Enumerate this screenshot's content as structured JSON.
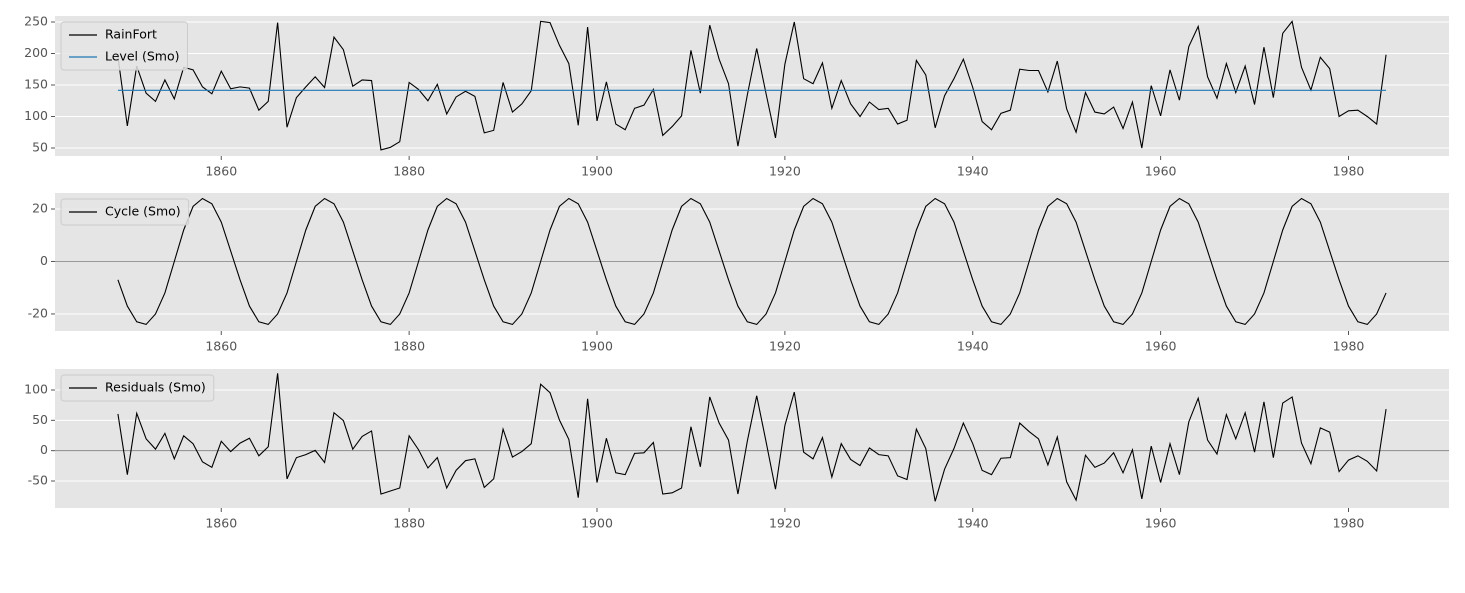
{
  "chart_data": [
    {
      "type": "line",
      "x": [
        1849,
        1850,
        1851,
        1852,
        1853,
        1854,
        1855,
        1856,
        1857,
        1858,
        1859,
        1860,
        1861,
        1862,
        1863,
        1864,
        1865,
        1866,
        1867,
        1868,
        1869,
        1870,
        1871,
        1872,
        1873,
        1874,
        1875,
        1876,
        1877,
        1878,
        1879,
        1880,
        1881,
        1882,
        1883,
        1884,
        1885,
        1886,
        1887,
        1888,
        1889,
        1890,
        1891,
        1892,
        1893,
        1894,
        1895,
        1896,
        1897,
        1898,
        1899,
        1900,
        1901,
        1902,
        1903,
        1904,
        1905,
        1906,
        1907,
        1908,
        1909,
        1910,
        1911,
        1912,
        1913,
        1914,
        1915,
        1916,
        1917,
        1918,
        1919,
        1920,
        1921,
        1922,
        1923,
        1924,
        1925,
        1926,
        1927,
        1928,
        1929,
        1930,
        1931,
        1932,
        1933,
        1934,
        1935,
        1936,
        1937,
        1938,
        1939,
        1940,
        1941,
        1942,
        1943,
        1944,
        1945,
        1946,
        1947,
        1948,
        1949,
        1950,
        1951,
        1952,
        1953,
        1954,
        1955,
        1956,
        1957,
        1958,
        1959,
        1960,
        1961,
        1962,
        1963,
        1964,
        1965,
        1966,
        1967,
        1968,
        1969,
        1970,
        1971,
        1972,
        1973,
        1974,
        1975,
        1976,
        1977,
        1978,
        1979,
        1980,
        1981,
        1982,
        1983,
        1984
      ],
      "series": [
        {
          "name": "RainFort",
          "color": "#000000",
          "values": [
            195,
            85,
            180,
            137,
            124,
            158,
            128,
            178,
            174,
            147,
            136,
            172,
            144,
            147,
            145,
            110,
            124,
            249,
            83,
            130,
            147,
            163,
            146,
            226,
            206,
            148,
            158,
            157,
            47,
            51,
            60,
            154,
            143,
            125,
            151,
            104,
            131,
            140,
            132,
            74,
            78,
            154,
            107,
            120,
            141,
            251,
            249,
            213,
            184,
            86,
            242,
            93,
            155,
            88,
            79,
            113,
            118,
            143,
            70,
            84,
            101,
            205,
            137,
            245,
            191,
            152,
            53,
            134,
            208,
            136,
            66,
            183,
            250,
            160,
            152,
            185,
            113,
            157,
            120,
            100,
            123,
            111,
            113,
            88,
            94,
            189,
            166,
            82,
            133,
            160,
            191,
            146,
            92,
            79,
            105,
            110,
            175,
            173,
            173,
            139,
            188,
            112,
            75,
            138,
            107,
            104,
            115,
            81,
            123,
            50,
            149,
            101,
            174,
            126,
            211,
            243,
            163,
            129,
            184,
            138,
            180,
            119,
            210,
            130,
            232,
            251,
            178,
            142,
            194,
            176,
            100,
            109,
            110,
            100,
            88,
            198
          ]
        },
        {
          "name": "Level (Smo)",
          "color": "#1f77b4",
          "values": [
            141.5,
            141.5,
            141.5,
            141.5,
            141.5,
            141.5,
            141.5,
            141.5,
            141.5,
            141.5,
            141.5,
            141.5,
            141.5,
            141.5,
            141.5,
            141.5,
            141.5,
            141.5,
            141.5,
            141.5,
            141.5,
            141.5,
            141.5,
            141.5,
            141.5,
            141.5,
            141.5,
            141.5,
            141.5,
            141.5,
            141.5,
            141.5,
            141.5,
            141.5,
            141.5,
            141.5,
            141.5,
            141.5,
            141.5,
            141.5,
            141.5,
            141.5,
            141.5,
            141.5,
            141.5,
            141.5,
            141.5,
            141.5,
            141.5,
            141.5,
            141.5,
            141.5,
            141.5,
            141.5,
            141.5,
            141.5,
            141.5,
            141.5,
            141.5,
            141.5,
            141.5,
            141.5,
            141.5,
            141.5,
            141.5,
            141.5,
            141.5,
            141.5,
            141.5,
            141.5,
            141.5,
            141.5,
            141.5,
            141.5,
            141.5,
            141.5,
            141.5,
            141.5,
            141.5,
            141.5,
            141.5,
            141.5,
            141.5,
            141.5,
            141.5,
            141.5,
            141.5,
            141.5,
            141.5,
            141.5,
            141.5,
            141.5,
            141.5,
            141.5,
            141.5,
            141.5,
            141.5,
            141.5,
            141.5,
            141.5,
            141.5,
            141.5,
            141.5,
            141.5,
            141.5,
            141.5,
            141.5,
            141.5,
            141.5,
            141.5,
            141.5,
            141.5,
            141.5,
            141.5,
            141.5,
            141.5,
            141.5,
            141.5,
            141.5,
            141.5,
            141.5,
            141.5,
            141.5,
            141.5,
            141.5,
            141.5,
            141.5,
            141.5,
            141.5,
            141.5,
            141.5,
            141.5,
            141.5,
            141.5,
            141.5,
            141.5
          ]
        }
      ],
      "xlim": [
        1842.3,
        1990.7
      ],
      "xticks": [
        1860,
        1880,
        1900,
        1920,
        1940,
        1960,
        1980
      ],
      "ylim": [
        37.3,
        259.5
      ],
      "yticks": [
        50,
        100,
        150,
        200,
        250
      ],
      "grid": true,
      "legend": "upper left"
    },
    {
      "type": "line",
      "x": [
        1849,
        1850,
        1851,
        1852,
        1853,
        1854,
        1855,
        1856,
        1857,
        1858,
        1859,
        1860,
        1861,
        1862,
        1863,
        1864,
        1865,
        1866,
        1867,
        1868,
        1869,
        1870,
        1871,
        1872,
        1873,
        1874,
        1875,
        1876,
        1877,
        1878,
        1879,
        1880,
        1881,
        1882,
        1883,
        1884,
        1885,
        1886,
        1887,
        1888,
        1889,
        1890,
        1891,
        1892,
        1893,
        1894,
        1895,
        1896,
        1897,
        1898,
        1899,
        1900,
        1901,
        1902,
        1903,
        1904,
        1905,
        1906,
        1907,
        1908,
        1909,
        1910,
        1911,
        1912,
        1913,
        1914,
        1915,
        1916,
        1917,
        1918,
        1919,
        1920,
        1921,
        1922,
        1923,
        1924,
        1925,
        1926,
        1927,
        1928,
        1929,
        1930,
        1931,
        1932,
        1933,
        1934,
        1935,
        1936,
        1937,
        1938,
        1939,
        1940,
        1941,
        1942,
        1943,
        1944,
        1945,
        1946,
        1947,
        1948,
        1949,
        1950,
        1951,
        1952,
        1953,
        1954,
        1955,
        1956,
        1957,
        1958,
        1959,
        1960,
        1961,
        1962,
        1963,
        1964,
        1965,
        1966,
        1967,
        1968,
        1969,
        1970,
        1971,
        1972,
        1973,
        1974,
        1975,
        1976,
        1977,
        1978,
        1979,
        1980,
        1981,
        1982,
        1983,
        1984
      ],
      "series": [
        {
          "name": "Cycle (Smo)",
          "color": "#000000",
          "values": [
            -7,
            -17,
            -23,
            -24,
            -20,
            -12,
            0,
            12,
            21,
            24,
            22,
            15,
            4,
            -7,
            -17,
            -23,
            -24,
            -20,
            -12,
            0,
            12,
            21,
            24,
            22,
            15,
            4,
            -7,
            -17,
            -23,
            -24,
            -20,
            -12,
            0,
            12,
            21,
            24,
            22,
            15,
            4,
            -7,
            -17,
            -23,
            -24,
            -20,
            -12,
            0,
            12,
            21,
            24,
            22,
            15,
            4,
            -7,
            -17,
            -23,
            -24,
            -20,
            -12,
            0,
            12,
            21,
            24,
            22,
            15,
            4,
            -7,
            -17,
            -23,
            -24,
            -20,
            -12,
            0,
            12,
            21,
            24,
            22,
            15,
            4,
            -7,
            -17,
            -23,
            -24,
            -20,
            -12,
            0,
            12,
            21,
            24,
            22,
            15,
            4,
            -7,
            -17,
            -23,
            -24,
            -20,
            -12,
            0,
            12,
            21,
            24,
            22,
            15,
            4,
            -7,
            -17,
            -23,
            -24,
            -20,
            -12,
            0,
            12,
            21,
            24,
            22,
            15,
            4,
            -7,
            -17,
            -23,
            -24,
            -20,
            -12,
            0,
            12,
            21,
            24,
            22,
            15,
            4,
            -7,
            -17,
            -23,
            -24,
            -20,
            -12
          ]
        }
      ],
      "xlim": [
        1842.3,
        1990.7
      ],
      "xticks": [
        1860,
        1880,
        1900,
        1920,
        1940,
        1960,
        1980
      ],
      "ylim": [
        -26.5,
        26.1
      ],
      "yticks": [
        -20,
        0,
        20
      ],
      "grid": true,
      "hline": 0,
      "legend": "upper left"
    },
    {
      "type": "line",
      "x": [
        1849,
        1850,
        1851,
        1852,
        1853,
        1854,
        1855,
        1856,
        1857,
        1858,
        1859,
        1860,
        1861,
        1862,
        1863,
        1864,
        1865,
        1866,
        1867,
        1868,
        1869,
        1870,
        1871,
        1872,
        1873,
        1874,
        1875,
        1876,
        1877,
        1878,
        1879,
        1880,
        1881,
        1882,
        1883,
        1884,
        1885,
        1886,
        1887,
        1888,
        1889,
        1890,
        1891,
        1892,
        1893,
        1894,
        1895,
        1896,
        1897,
        1898,
        1899,
        1900,
        1901,
        1902,
        1903,
        1904,
        1905,
        1906,
        1907,
        1908,
        1909,
        1910,
        1911,
        1912,
        1913,
        1914,
        1915,
        1916,
        1917,
        1918,
        1919,
        1920,
        1921,
        1922,
        1923,
        1924,
        1925,
        1926,
        1927,
        1928,
        1929,
        1930,
        1931,
        1932,
        1933,
        1934,
        1935,
        1936,
        1937,
        1938,
        1939,
        1940,
        1941,
        1942,
        1943,
        1944,
        1945,
        1946,
        1947,
        1948,
        1949,
        1950,
        1951,
        1952,
        1953,
        1954,
        1955,
        1956,
        1957,
        1958,
        1959,
        1960,
        1961,
        1962,
        1963,
        1964,
        1965,
        1966,
        1967,
        1968,
        1969,
        1970,
        1971,
        1972,
        1973,
        1974,
        1975,
        1976,
        1977,
        1978,
        1979,
        1980,
        1981,
        1982,
        1983,
        1984
      ],
      "series": [
        {
          "name": "Residuals (Smo)",
          "color": "#000000",
          "values": [
            60.5,
            -39.5,
            61.5,
            19.5,
            2.5,
            28.5,
            -13.5,
            24.5,
            11.5,
            -18.5,
            -27.5,
            15.5,
            -1.5,
            12.5,
            20.5,
            -8.5,
            6.5,
            127.5,
            -46.5,
            -11.5,
            -6.5,
            0.5,
            -19.5,
            62.5,
            49.5,
            2.5,
            23.5,
            32.5,
            -71.5,
            -66.5,
            -61.5,
            24.5,
            1.5,
            -28.5,
            -11.5,
            -61.5,
            -32.5,
            -16.5,
            -13.5,
            -60.5,
            -46.5,
            35.5,
            -10.5,
            -1.5,
            11.5,
            109.5,
            95.5,
            50.5,
            18.5,
            -77.5,
            85.5,
            -52.5,
            20.5,
            -36.5,
            -39.5,
            -4.5,
            -3.5,
            13.5,
            -71.5,
            -69.5,
            -61.5,
            39.5,
            -26.5,
            88.5,
            45.5,
            17.5,
            -71.5,
            15.5,
            90.5,
            14.5,
            -63.5,
            41.5,
            96.5,
            -2.5,
            -13.5,
            21.5,
            -43.5,
            11.5,
            -14.5,
            -24.5,
            4.5,
            -6.5,
            -8.5,
            -41.5,
            -47.5,
            35.5,
            3.5,
            -83.5,
            -30.5,
            3.5,
            45.5,
            11.5,
            -32.5,
            -39.5,
            -12.5,
            -11.5,
            45.5,
            31.5,
            19.5,
            -23.5,
            22.5,
            -51.5,
            -81.5,
            -7.5,
            -27.5,
            -20.5,
            -3.5,
            -36.5,
            1.5,
            -79.5,
            7.5,
            -52.5,
            11.5,
            -39.5,
            47.5,
            86.5,
            17.5,
            -5.5,
            59.5,
            19.5,
            62.5,
            -2.5,
            80.5,
            -11.5,
            78.5,
            88.5,
            12.5,
            -21.5,
            37.5,
            30.5,
            -34.5,
            -15.5,
            -8.5,
            -17.5,
            -33.5,
            68.5
          ]
        }
      ],
      "xlim": [
        1842.3,
        1990.7
      ],
      "xticks": [
        1860,
        1880,
        1900,
        1920,
        1940,
        1960,
        1980
      ],
      "ylim": [
        -94.5,
        134.6
      ],
      "yticks": [
        -50,
        0,
        50,
        100
      ],
      "grid": true,
      "hline": 0,
      "legend": "upper left"
    }
  ]
}
